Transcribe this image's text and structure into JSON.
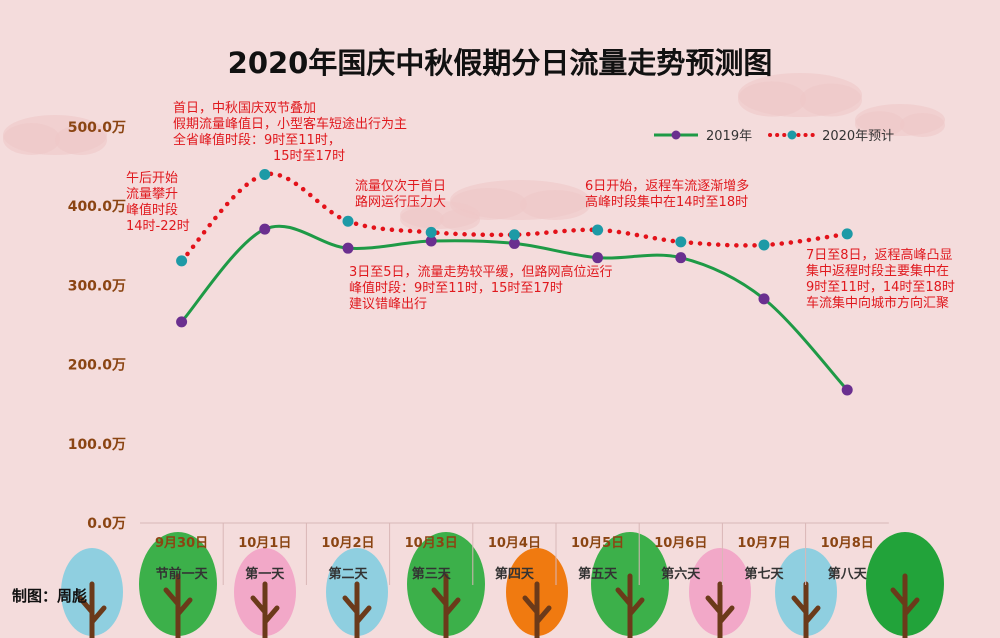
{
  "title": "2020年国庆中秋假期分日流量走势预测图",
  "credit": "制图：周彪",
  "colors": {
    "background": "#f4dcdc",
    "series_2019": "#1e9a46",
    "series_2019_marker": "#6a2f8f",
    "series_2020": "#e3121a",
    "series_2020_marker": "#1d9aa6",
    "annotation": "#e0191e",
    "axis_label": "#8b4513"
  },
  "annotations": [
    {
      "lines": [
        "首日，中秋国庆双节叠加",
        "假期流量峰值日，小型客车短途出行为主",
        "全省峰值时段：9时至11时，",
        "               15时至17时"
      ]
    },
    {
      "lines": [
        "午后开始",
        "流量攀升",
        "峰值时段",
        "14时-22时"
      ]
    },
    {
      "lines": [
        "流量仅次于首日",
        "路网运行压力大"
      ]
    },
    {
      "lines": [
        "3日至5日，流量走势较平缓，但路网高位运行",
        "峰值时段：9时至11时，15时至17时",
        "建议错峰出行"
      ]
    },
    {
      "lines": [
        "6日开始，返程车流逐渐增多",
        "高峰时段集中在14时至18时"
      ]
    },
    {
      "lines": [
        "7日至8日，返程高峰凸显",
        "集中返程时段主要集中在",
        "9时至11时，14时至18时",
        "车流集中向城市方向汇聚"
      ]
    }
  ],
  "chart_data": {
    "type": "line",
    "categories": [
      "9月30日",
      "10月1日",
      "10月2日",
      "10月3日",
      "10月4日",
      "10月5日",
      "10月6日",
      "10月7日",
      "10月8日"
    ],
    "sub_categories": [
      "节前一天",
      "第一天",
      "第二天",
      "第三天",
      "第四天",
      "第五天",
      "第六天",
      "第七天",
      "第八天"
    ],
    "y_tick_labels": [
      "0.0万",
      "100.0万",
      "200.0万",
      "300.0万",
      "400.0万",
      "500.0万"
    ],
    "ylim": [
      0,
      500
    ],
    "y_unit": "万",
    "grid": false,
    "legend_position": "top-right",
    "series": [
      {
        "name": "2019年",
        "values": [
          254,
          371,
          347,
          356,
          353,
          335,
          335,
          283,
          168
        ],
        "style": "solid"
      },
      {
        "name": "2020年预计",
        "values": [
          331,
          440,
          381,
          367,
          364,
          370,
          355,
          351,
          365
        ],
        "style": "dotted"
      }
    ]
  },
  "decor": {
    "trees": [
      {
        "color": "#8fcfe0"
      },
      {
        "color": "#3cb04a"
      },
      {
        "color": "#f2a8c8"
      },
      {
        "color": "#8fcfe0"
      },
      {
        "color": "#3cb04a"
      },
      {
        "color": "#f07a10"
      },
      {
        "color": "#3cb04a"
      },
      {
        "color": "#f2a8c8"
      },
      {
        "color": "#8fcfe0"
      },
      {
        "color": "#22a33a"
      }
    ]
  }
}
